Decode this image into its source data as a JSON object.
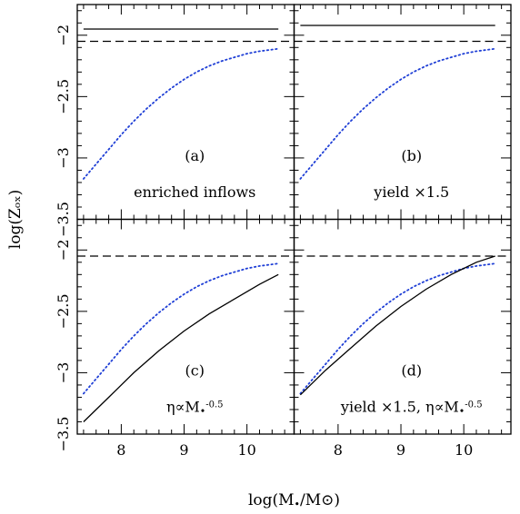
{
  "figure": {
    "xlabel": "log(M•/M⊙)",
    "ylabel": "log(Zₒₓ)"
  },
  "chart_data": [
    {
      "type": "line",
      "panel": "a",
      "label": "(a)",
      "annotation": "enriched inflows",
      "xlim": [
        7.3,
        10.75
      ],
      "ylim": [
        -3.5,
        -1.75
      ],
      "x_ticks": [
        8,
        9,
        10
      ],
      "y_ticks": [
        -2,
        -2.5,
        -3,
        -3.5
      ],
      "grid": false,
      "series": [
        {
          "style": "dotted",
          "color": "#1f3fd6",
          "x": [
            7.4,
            7.6,
            7.8,
            8.0,
            8.2,
            8.4,
            8.6,
            8.8,
            9.0,
            9.2,
            9.4,
            9.6,
            9.8,
            10.0,
            10.2,
            10.5
          ],
          "y": [
            -3.17,
            -3.05,
            -2.93,
            -2.81,
            -2.7,
            -2.6,
            -2.51,
            -2.43,
            -2.36,
            -2.3,
            -2.25,
            -2.21,
            -2.18,
            -2.15,
            -2.13,
            -2.11
          ]
        },
        {
          "style": "solid",
          "color": "#000000",
          "x": [
            7.4,
            10.5
          ],
          "y": [
            -1.95,
            -1.95
          ]
        },
        {
          "style": "dashed",
          "color": "#000000",
          "x": [
            7.3,
            10.75
          ],
          "y": [
            -2.05,
            -2.05
          ]
        }
      ]
    },
    {
      "type": "line",
      "panel": "b",
      "label": "(b)",
      "annotation": "yield ×1.5",
      "xlim": [
        7.3,
        10.75
      ],
      "ylim": [
        -3.5,
        -1.75
      ],
      "x_ticks": [
        8,
        9,
        10
      ],
      "y_ticks": [
        -2,
        -2.5,
        -3,
        -3.5
      ],
      "grid": false,
      "series": [
        {
          "style": "dotted",
          "color": "#1f3fd6",
          "x": [
            7.4,
            7.6,
            7.8,
            8.0,
            8.2,
            8.4,
            8.6,
            8.8,
            9.0,
            9.2,
            9.4,
            9.6,
            9.8,
            10.0,
            10.2,
            10.5
          ],
          "y": [
            -3.17,
            -3.05,
            -2.93,
            -2.81,
            -2.7,
            -2.6,
            -2.51,
            -2.43,
            -2.36,
            -2.3,
            -2.25,
            -2.21,
            -2.18,
            -2.15,
            -2.13,
            -2.11
          ]
        },
        {
          "style": "solid",
          "color": "#000000",
          "x": [
            7.4,
            10.5
          ],
          "y": [
            -1.92,
            -1.92
          ]
        },
        {
          "style": "dashed",
          "color": "#000000",
          "x": [
            7.3,
            10.75
          ],
          "y": [
            -2.05,
            -2.05
          ]
        }
      ]
    },
    {
      "type": "line",
      "panel": "c",
      "label": "(c)",
      "annotation": "η∝M•^-0.5",
      "xlim": [
        7.3,
        10.75
      ],
      "ylim": [
        -3.5,
        -1.75
      ],
      "x_ticks": [
        8,
        9,
        10
      ],
      "y_ticks": [
        -2,
        -2.5,
        -3,
        -3.5
      ],
      "grid": false,
      "series": [
        {
          "style": "dotted",
          "color": "#1f3fd6",
          "x": [
            7.4,
            7.6,
            7.8,
            8.0,
            8.2,
            8.4,
            8.6,
            8.8,
            9.0,
            9.2,
            9.4,
            9.6,
            9.8,
            10.0,
            10.2,
            10.5
          ],
          "y": [
            -3.17,
            -3.05,
            -2.93,
            -2.81,
            -2.7,
            -2.6,
            -2.51,
            -2.43,
            -2.36,
            -2.3,
            -2.25,
            -2.21,
            -2.18,
            -2.15,
            -2.13,
            -2.11
          ]
        },
        {
          "style": "solid",
          "color": "#000000",
          "x": [
            7.4,
            7.8,
            8.2,
            8.6,
            9.0,
            9.4,
            9.8,
            10.2,
            10.5
          ],
          "y": [
            -3.4,
            -3.2,
            -3.0,
            -2.82,
            -2.66,
            -2.52,
            -2.4,
            -2.28,
            -2.2
          ]
        },
        {
          "style": "dashed",
          "color": "#000000",
          "x": [
            7.3,
            10.75
          ],
          "y": [
            -2.05,
            -2.05
          ]
        }
      ]
    },
    {
      "type": "line",
      "panel": "d",
      "label": "(d)",
      "annotation": "yield ×1.5, η∝M•^-0.5",
      "xlim": [
        7.3,
        10.75
      ],
      "ylim": [
        -3.5,
        -1.75
      ],
      "x_ticks": [
        8,
        9,
        10
      ],
      "y_ticks": [
        -2,
        -2.5,
        -3,
        -3.5
      ],
      "grid": false,
      "series": [
        {
          "style": "dotted",
          "color": "#1f3fd6",
          "x": [
            7.4,
            7.6,
            7.8,
            8.0,
            8.2,
            8.4,
            8.6,
            8.8,
            9.0,
            9.2,
            9.4,
            9.6,
            9.8,
            10.0,
            10.2,
            10.5
          ],
          "y": [
            -3.17,
            -3.05,
            -2.93,
            -2.81,
            -2.7,
            -2.6,
            -2.51,
            -2.43,
            -2.36,
            -2.3,
            -2.25,
            -2.21,
            -2.18,
            -2.15,
            -2.13,
            -2.11
          ]
        },
        {
          "style": "solid",
          "color": "#000000",
          "x": [
            7.4,
            7.8,
            8.2,
            8.6,
            9.0,
            9.4,
            9.8,
            10.2,
            10.5
          ],
          "y": [
            -3.18,
            -2.98,
            -2.8,
            -2.62,
            -2.46,
            -2.32,
            -2.2,
            -2.1,
            -2.05
          ]
        },
        {
          "style": "dashed",
          "color": "#000000",
          "x": [
            7.3,
            10.75
          ],
          "y": [
            -2.05,
            -2.05
          ]
        }
      ]
    }
  ]
}
